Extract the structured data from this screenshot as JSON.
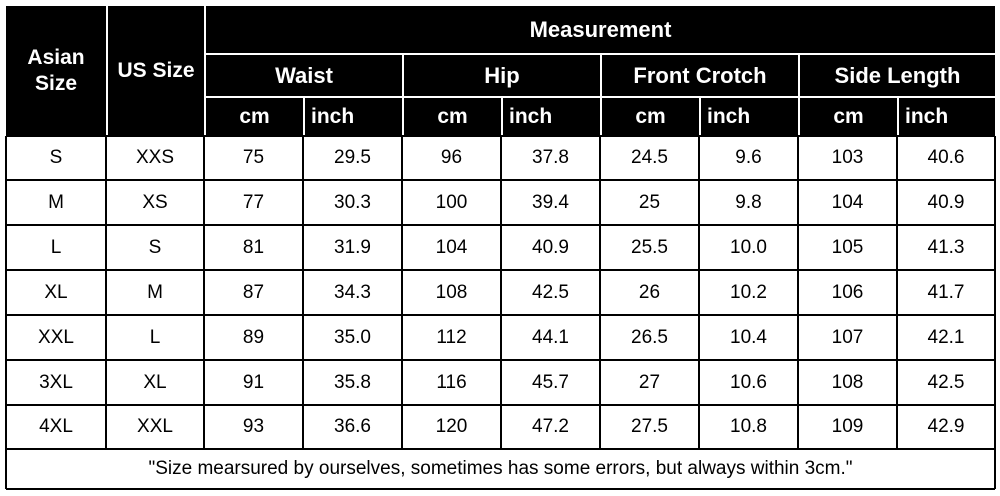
{
  "header": {
    "asian_size": "Asian Size",
    "us_size": "US Size",
    "measurement": "Measurement",
    "groups": [
      "Waist",
      "Hip",
      "Front Crotch",
      "Side Length"
    ],
    "units": [
      "cm",
      "inch",
      "cm",
      "inch",
      "cm",
      "inch",
      "cm",
      "inch"
    ]
  },
  "rows": [
    [
      "S",
      "XXS",
      "75",
      "29.5",
      "96",
      "37.8",
      "24.5",
      "9.6",
      "103",
      "40.6"
    ],
    [
      "M",
      "XS",
      "77",
      "30.3",
      "100",
      "39.4",
      "25",
      "9.8",
      "104",
      "40.9"
    ],
    [
      "L",
      "S",
      "81",
      "31.9",
      "104",
      "40.9",
      "25.5",
      "10.0",
      "105",
      "41.3"
    ],
    [
      "XL",
      "M",
      "87",
      "34.3",
      "108",
      "42.5",
      "26",
      "10.2",
      "106",
      "41.7"
    ],
    [
      "XXL",
      "L",
      "89",
      "35.0",
      "112",
      "44.1",
      "26.5",
      "10.4",
      "107",
      "42.1"
    ],
    [
      "3XL",
      "XL",
      "91",
      "35.8",
      "116",
      "45.7",
      "27",
      "10.6",
      "108",
      "42.5"
    ],
    [
      "4XL",
      "XXL",
      "93",
      "36.6",
      "120",
      "47.2",
      "27.5",
      "10.8",
      "109",
      "42.9"
    ]
  ],
  "footnote": "\"Size mearsured by ourselves, sometimes has some errors, but always within 3cm.\""
}
